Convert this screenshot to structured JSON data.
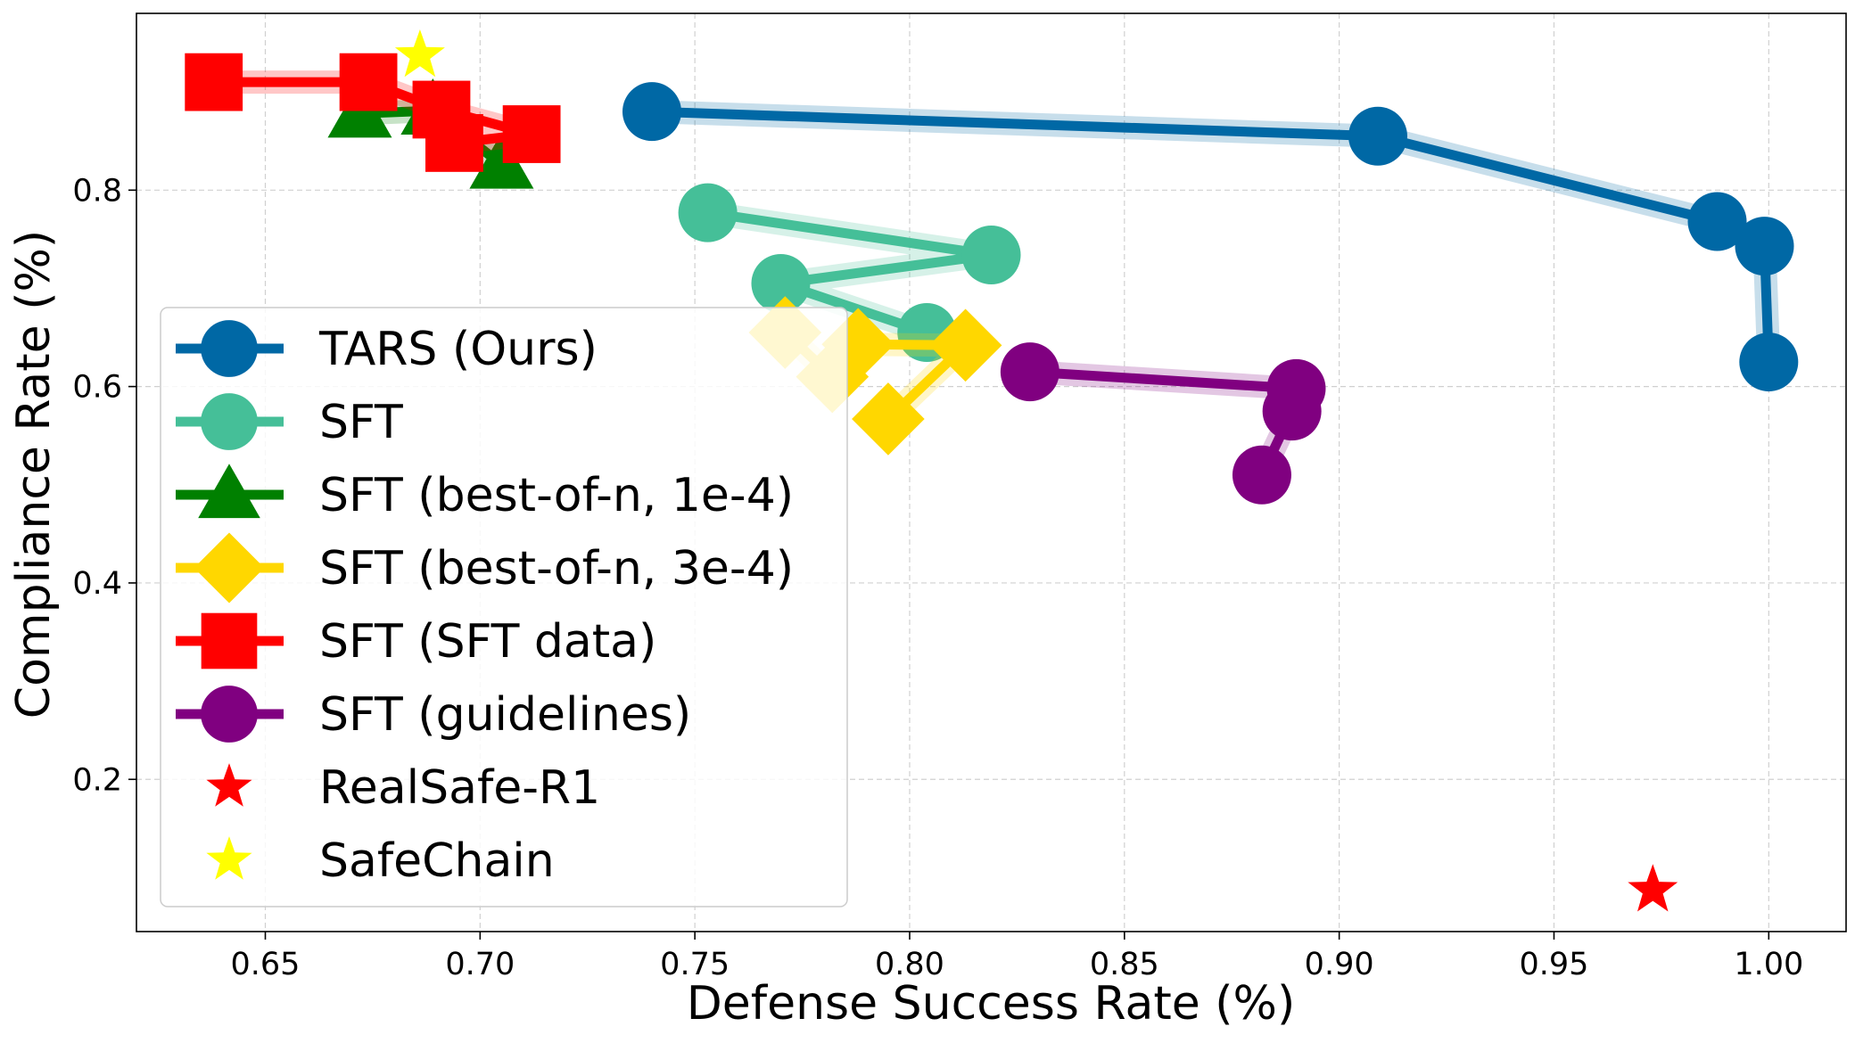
{
  "chart_data": {
    "type": "line",
    "title": "",
    "xlabel": "Defense Success Rate (%)",
    "ylabel": "Compliance Rate (%)",
    "xlim": [
      0.62,
      1.018
    ],
    "ylim": [
      0.045,
      0.98
    ],
    "xticks": [
      0.65,
      0.7,
      0.75,
      0.8,
      0.85,
      0.9,
      0.95,
      1.0
    ],
    "xtick_labels": [
      "0.65",
      "0.70",
      "0.75",
      "0.80",
      "0.85",
      "0.90",
      "0.95",
      "1.00"
    ],
    "yticks": [
      0.2,
      0.4,
      0.6,
      0.8
    ],
    "ytick_labels": [
      "0.2",
      "0.4",
      "0.6",
      "0.8"
    ],
    "grid": true,
    "legend_position": "center-left",
    "series": [
      {
        "name": "TARS (Ours)",
        "color": "#0068a5",
        "marker": "circle",
        "points": [
          [
            0.74,
            0.88
          ],
          [
            0.909,
            0.855
          ],
          [
            0.988,
            0.768
          ],
          [
            0.999,
            0.743
          ],
          [
            1.0,
            0.625
          ]
        ]
      },
      {
        "name": "SFT",
        "color": "#45bf98",
        "marker": "circle",
        "points": [
          [
            0.753,
            0.777
          ],
          [
            0.819,
            0.734
          ],
          [
            0.77,
            0.705
          ],
          [
            0.804,
            0.655
          ]
        ]
      },
      {
        "name": "SFT (best-of-n, 1e-4)",
        "color": "#008000",
        "marker": "triangle",
        "points": [
          [
            0.672,
            0.878
          ],
          [
            0.689,
            0.881
          ],
          [
            0.705,
            0.826
          ]
        ]
      },
      {
        "name": "SFT (best-of-n, 3e-4)",
        "color": "#ffd700",
        "marker": "diamond",
        "points": [
          [
            0.771,
            0.655
          ],
          [
            0.782,
            0.61
          ],
          [
            0.788,
            0.643
          ],
          [
            0.813,
            0.642
          ],
          [
            0.795,
            0.567
          ]
        ]
      },
      {
        "name": "SFT (SFT data)",
        "color": "#ff0000",
        "marker": "square",
        "points": [
          [
            0.638,
            0.91
          ],
          [
            0.674,
            0.91
          ],
          [
            0.691,
            0.882
          ],
          [
            0.712,
            0.857
          ],
          [
            0.694,
            0.848
          ]
        ]
      },
      {
        "name": "SFT (guidelines)",
        "color": "#800080",
        "marker": "circle",
        "points": [
          [
            0.828,
            0.615
          ],
          [
            0.89,
            0.598
          ],
          [
            0.889,
            0.575
          ],
          [
            0.882,
            0.51
          ]
        ]
      },
      {
        "name": "RealSafe-R1",
        "color": "#ff0000",
        "marker": "star",
        "points": [
          [
            0.973,
            0.087
          ]
        ]
      },
      {
        "name": "SafeChain",
        "color": "#ffff00",
        "marker": "star",
        "points": [
          [
            0.686,
            0.937
          ]
        ]
      }
    ]
  }
}
